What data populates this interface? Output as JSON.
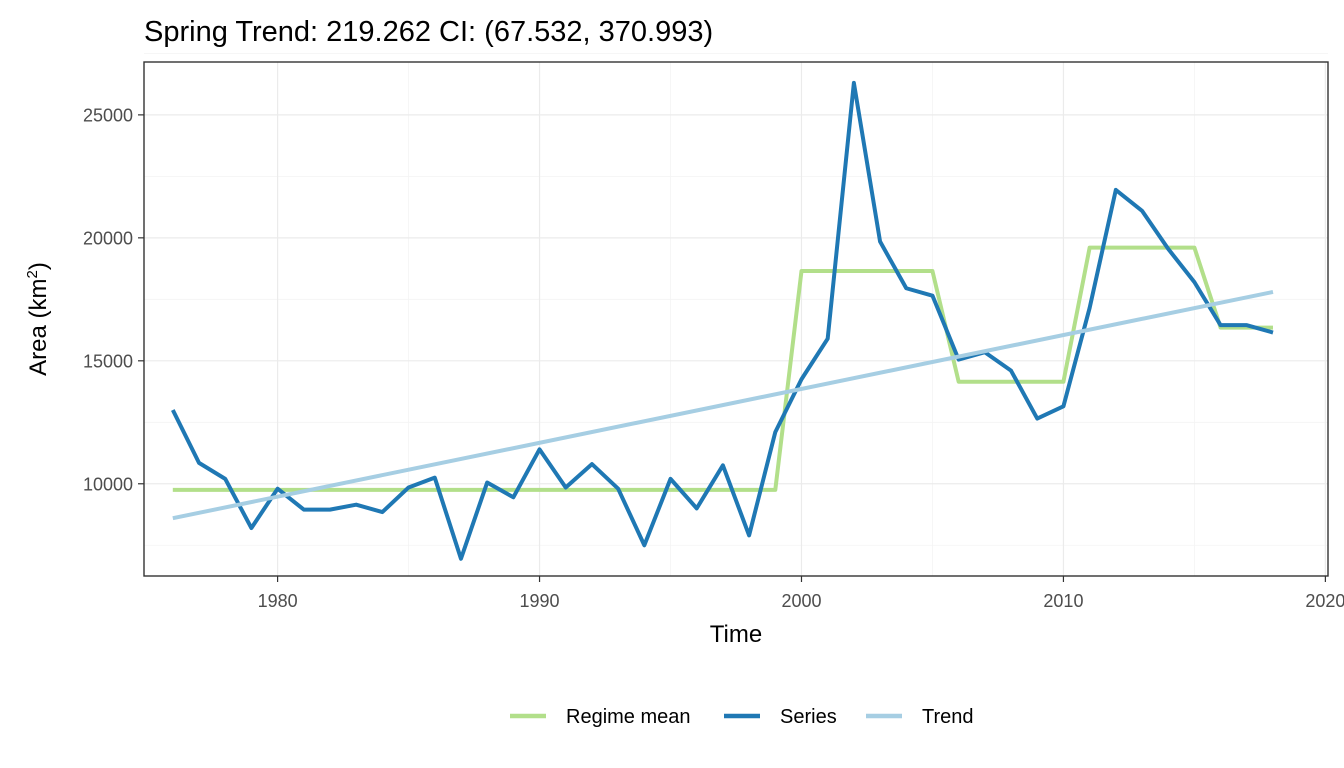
{
  "chart_data": {
    "type": "line",
    "title": "Spring Trend: 219.262 CI: (67.532, 370.993)",
    "xlabel": "Time",
    "ylabel": "Area (km",
    "ylabel_sup": "2",
    "ylabel_end": ")",
    "xlim": [
      1974.9,
      2020.1
    ],
    "ylim": [
      6250,
      27150
    ],
    "x_ticks": [
      1980,
      1990,
      2000,
      2010,
      2020
    ],
    "x_tick_labels": [
      "1980",
      "1990",
      "2000",
      "2010",
      "2020"
    ],
    "y_ticks": [
      10000,
      15000,
      20000,
      25000
    ],
    "y_tick_labels": [
      "10000",
      "15000",
      "20000",
      "25000"
    ],
    "grid": true,
    "legend_position": "bottom",
    "colors": {
      "Regime mean": "#b2df8a",
      "Series": "#1f78b4",
      "Trend": "#a6cee3"
    },
    "series": [
      {
        "name": "Regime mean",
        "x": [
          1976,
          1999,
          2000,
          2005,
          2006,
          2010,
          2011,
          2015,
          2016,
          2018
        ],
        "y": [
          9750,
          9750,
          18650,
          18650,
          14150,
          14150,
          19600,
          19600,
          16350,
          16350
        ]
      },
      {
        "name": "Series",
        "x": [
          1976,
          1977,
          1978,
          1979,
          1980,
          1981,
          1982,
          1983,
          1984,
          1985,
          1986,
          1987,
          1988,
          1989,
          1990,
          1991,
          1992,
          1993,
          1994,
          1995,
          1996,
          1997,
          1998,
          1999,
          2000,
          2001,
          2002,
          2003,
          2004,
          2005,
          2006,
          2007,
          2008,
          2009,
          2010,
          2011,
          2012,
          2013,
          2014,
          2015,
          2016,
          2017,
          2018
        ],
        "y": [
          13000,
          10850,
          10200,
          8200,
          9800,
          8950,
          8950,
          9150,
          8850,
          9850,
          10250,
          6950,
          10050,
          9450,
          11400,
          9850,
          10800,
          9800,
          7500,
          10200,
          9000,
          10750,
          7900,
          12100,
          14250,
          15900,
          26300,
          19850,
          17950,
          17650,
          15050,
          15350,
          14600,
          12650,
          13150,
          17150,
          21950,
          21100,
          19550,
          18200,
          16450,
          16450,
          16150
        ]
      },
      {
        "name": "Trend",
        "x": [
          1976,
          2018
        ],
        "y": [
          8600,
          17800
        ]
      }
    ],
    "legend": [
      "Regime mean",
      "Series",
      "Trend"
    ]
  }
}
